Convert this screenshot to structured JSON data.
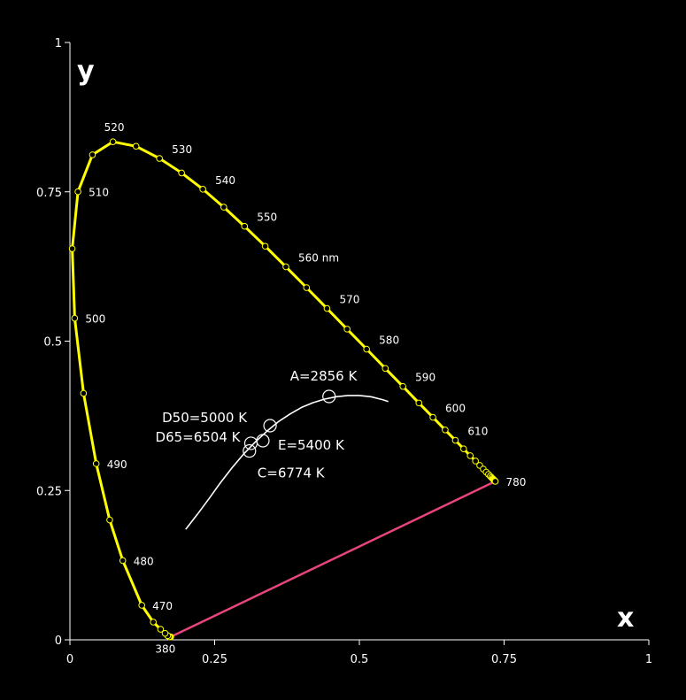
{
  "chart_data": {
    "type": "scatter",
    "title": "",
    "xlabel": "x",
    "ylabel": "y",
    "xlim": [
      0,
      1
    ],
    "ylim": [
      0,
      1
    ],
    "x_ticks": [
      {
        "v": 0,
        "label": "0"
      },
      {
        "v": 0.25,
        "label": "0.25"
      },
      {
        "v": 0.5,
        "label": "0.5"
      },
      {
        "v": 0.75,
        "label": "0.75"
      },
      {
        "v": 1,
        "label": "1"
      }
    ],
    "y_ticks": [
      {
        "v": 0,
        "label": "0"
      },
      {
        "v": 0.25,
        "label": "0.25"
      },
      {
        "v": 0.5,
        "label": "0.5"
      },
      {
        "v": 0.75,
        "label": "0.75"
      },
      {
        "v": 1,
        "label": "1"
      }
    ],
    "spectral_locus": [
      [
        0.1741,
        0.005
      ],
      [
        0.1738,
        0.0049
      ],
      [
        0.1733,
        0.0048
      ],
      [
        0.1726,
        0.0048
      ],
      [
        0.1714,
        0.0051
      ],
      [
        0.1689,
        0.0069
      ],
      [
        0.1644,
        0.0109
      ],
      [
        0.1566,
        0.0177
      ],
      [
        0.144,
        0.0297
      ],
      [
        0.1241,
        0.0578
      ],
      [
        0.0913,
        0.1327
      ],
      [
        0.0687,
        0.2007
      ],
      [
        0.0454,
        0.295
      ],
      [
        0.0235,
        0.4127
      ],
      [
        0.0082,
        0.5384
      ],
      [
        0.0039,
        0.6548
      ],
      [
        0.0139,
        0.7502
      ],
      [
        0.0389,
        0.812
      ],
      [
        0.0743,
        0.8338
      ],
      [
        0.1142,
        0.8262
      ],
      [
        0.1547,
        0.8059
      ],
      [
        0.1929,
        0.7816
      ],
      [
        0.2296,
        0.7543
      ],
      [
        0.2658,
        0.7243
      ],
      [
        0.3016,
        0.6923
      ],
      [
        0.3373,
        0.6589
      ],
      [
        0.3731,
        0.6245
      ],
      [
        0.4087,
        0.5896
      ],
      [
        0.4441,
        0.5547
      ],
      [
        0.4788,
        0.5202
      ],
      [
        0.5125,
        0.4866
      ],
      [
        0.5448,
        0.4544
      ],
      [
        0.5752,
        0.4242
      ],
      [
        0.6029,
        0.3965
      ],
      [
        0.627,
        0.3725
      ],
      [
        0.6482,
        0.3514
      ],
      [
        0.6658,
        0.334
      ],
      [
        0.6801,
        0.3197
      ],
      [
        0.6915,
        0.3083
      ],
      [
        0.7006,
        0.2993
      ],
      [
        0.7079,
        0.292
      ],
      [
        0.714,
        0.2859
      ],
      [
        0.719,
        0.2809
      ],
      [
        0.723,
        0.277
      ],
      [
        0.726,
        0.274
      ],
      [
        0.7283,
        0.2717
      ],
      [
        0.73,
        0.27
      ],
      [
        0.7311,
        0.2689
      ],
      [
        0.732,
        0.268
      ],
      [
        0.7327,
        0.2673
      ],
      [
        0.7334,
        0.2666
      ],
      [
        0.734,
        0.266
      ],
      [
        0.7344,
        0.2656
      ],
      [
        0.7346,
        0.2654
      ],
      [
        0.7347,
        0.2653
      ]
    ],
    "wavelength_labels": [
      {
        "label": "380",
        "x": 0.1741,
        "y": 0.005,
        "pos": "below"
      },
      {
        "label": "470",
        "x": 0.1241,
        "y": 0.0578,
        "pos": "right"
      },
      {
        "label": "480",
        "x": 0.0913,
        "y": 0.1327,
        "pos": "right"
      },
      {
        "label": "490",
        "x": 0.0454,
        "y": 0.295,
        "pos": "right"
      },
      {
        "label": "500",
        "x": 0.0082,
        "y": 0.5384,
        "pos": "right"
      },
      {
        "label": "510",
        "x": 0.0139,
        "y": 0.7502,
        "pos": "right"
      },
      {
        "label": "520",
        "x": 0.0743,
        "y": 0.8338,
        "pos": "above"
      },
      {
        "label": "530",
        "x": 0.1547,
        "y": 0.8059,
        "pos": "upper-right"
      },
      {
        "label": "540",
        "x": 0.2296,
        "y": 0.7543,
        "pos": "upper-right"
      },
      {
        "label": "550",
        "x": 0.3016,
        "y": 0.6923,
        "pos": "upper-right"
      },
      {
        "label": "560 nm",
        "x": 0.3731,
        "y": 0.6245,
        "pos": "upper-right"
      },
      {
        "label": "570",
        "x": 0.4441,
        "y": 0.5547,
        "pos": "upper-right"
      },
      {
        "label": "580",
        "x": 0.5125,
        "y": 0.4866,
        "pos": "upper-right"
      },
      {
        "label": "590",
        "x": 0.5752,
        "y": 0.4242,
        "pos": "upper-right"
      },
      {
        "label": "600",
        "x": 0.627,
        "y": 0.3725,
        "pos": "upper-right"
      },
      {
        "label": "610",
        "x": 0.6658,
        "y": 0.334,
        "pos": "upper-right"
      },
      {
        "label": "780",
        "x": 0.7347,
        "y": 0.2653,
        "pos": "right"
      }
    ],
    "planckian_locus": [
      [
        0.2,
        0.185
      ],
      [
        0.22,
        0.21
      ],
      [
        0.24,
        0.236
      ],
      [
        0.26,
        0.263
      ],
      [
        0.28,
        0.288
      ],
      [
        0.3,
        0.311
      ],
      [
        0.32,
        0.331
      ],
      [
        0.34,
        0.349
      ],
      [
        0.36,
        0.365
      ],
      [
        0.38,
        0.378
      ],
      [
        0.4,
        0.389
      ],
      [
        0.42,
        0.397
      ],
      [
        0.44,
        0.403
      ],
      [
        0.46,
        0.407
      ],
      [
        0.48,
        0.409
      ],
      [
        0.5,
        0.409
      ],
      [
        0.52,
        0.407
      ],
      [
        0.54,
        0.402
      ],
      [
        0.55,
        0.399
      ]
    ],
    "illuminants": [
      {
        "label": "A=2856 K",
        "x": 0.4476,
        "y": 0.4074
      },
      {
        "label": "D50=5000 K",
        "x": 0.3457,
        "y": 0.3585
      },
      {
        "label": "D65=6504 K",
        "x": 0.3127,
        "y": 0.329
      },
      {
        "label": "E=5400 K",
        "x": 0.3333,
        "y": 0.3333
      },
      {
        "label": "C=6774 K",
        "x": 0.3101,
        "y": 0.3162
      }
    ],
    "colors": {
      "background": "#000000",
      "locus": "#ffff00",
      "purple_line": "#e8457a",
      "planckian": "#ffffff",
      "text": "#ffffff"
    }
  }
}
